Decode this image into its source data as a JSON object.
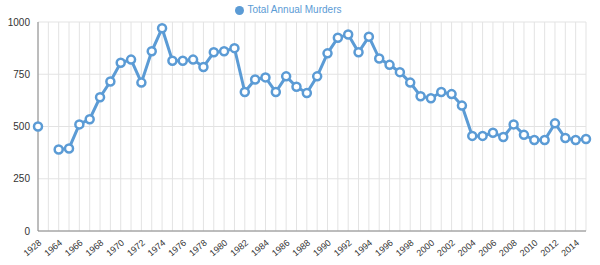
{
  "chart_data": {
    "type": "line",
    "categories": [
      "1928",
      null,
      "1964",
      null,
      "1966",
      null,
      "1968",
      null,
      "1970",
      null,
      "1972",
      null,
      "1974",
      null,
      "1976",
      null,
      "1978",
      null,
      "1980",
      null,
      "1982",
      null,
      "1984",
      null,
      "1986",
      null,
      "1988",
      null,
      "1990",
      null,
      "1992",
      null,
      "1994",
      null,
      "1996",
      null,
      "1998",
      null,
      "2000",
      null,
      "2002",
      null,
      "2004",
      null,
      "2006",
      null,
      "2008",
      null,
      "2010",
      null,
      "2012",
      null,
      "2014",
      null
    ],
    "series": [
      {
        "name": "Total Annual Murders",
        "color": "#5b9bd5",
        "values": [
          500,
          null,
          390,
          395,
          510,
          535,
          640,
          715,
          805,
          820,
          710,
          860,
          970,
          815,
          815,
          820,
          785,
          855,
          860,
          875,
          665,
          725,
          735,
          665,
          740,
          690,
          660,
          740,
          850,
          925,
          940,
          855,
          930,
          825,
          795,
          760,
          710,
          645,
          635,
          665,
          655,
          600,
          455,
          455,
          470,
          450,
          510,
          460,
          435,
          435,
          515,
          445,
          435,
          440
        ]
      }
    ],
    "ylim": [
      0,
      1000
    ],
    "yticks": [
      0,
      250,
      500,
      750,
      1000
    ],
    "grid": true,
    "legend": "top",
    "marker": "circle"
  }
}
